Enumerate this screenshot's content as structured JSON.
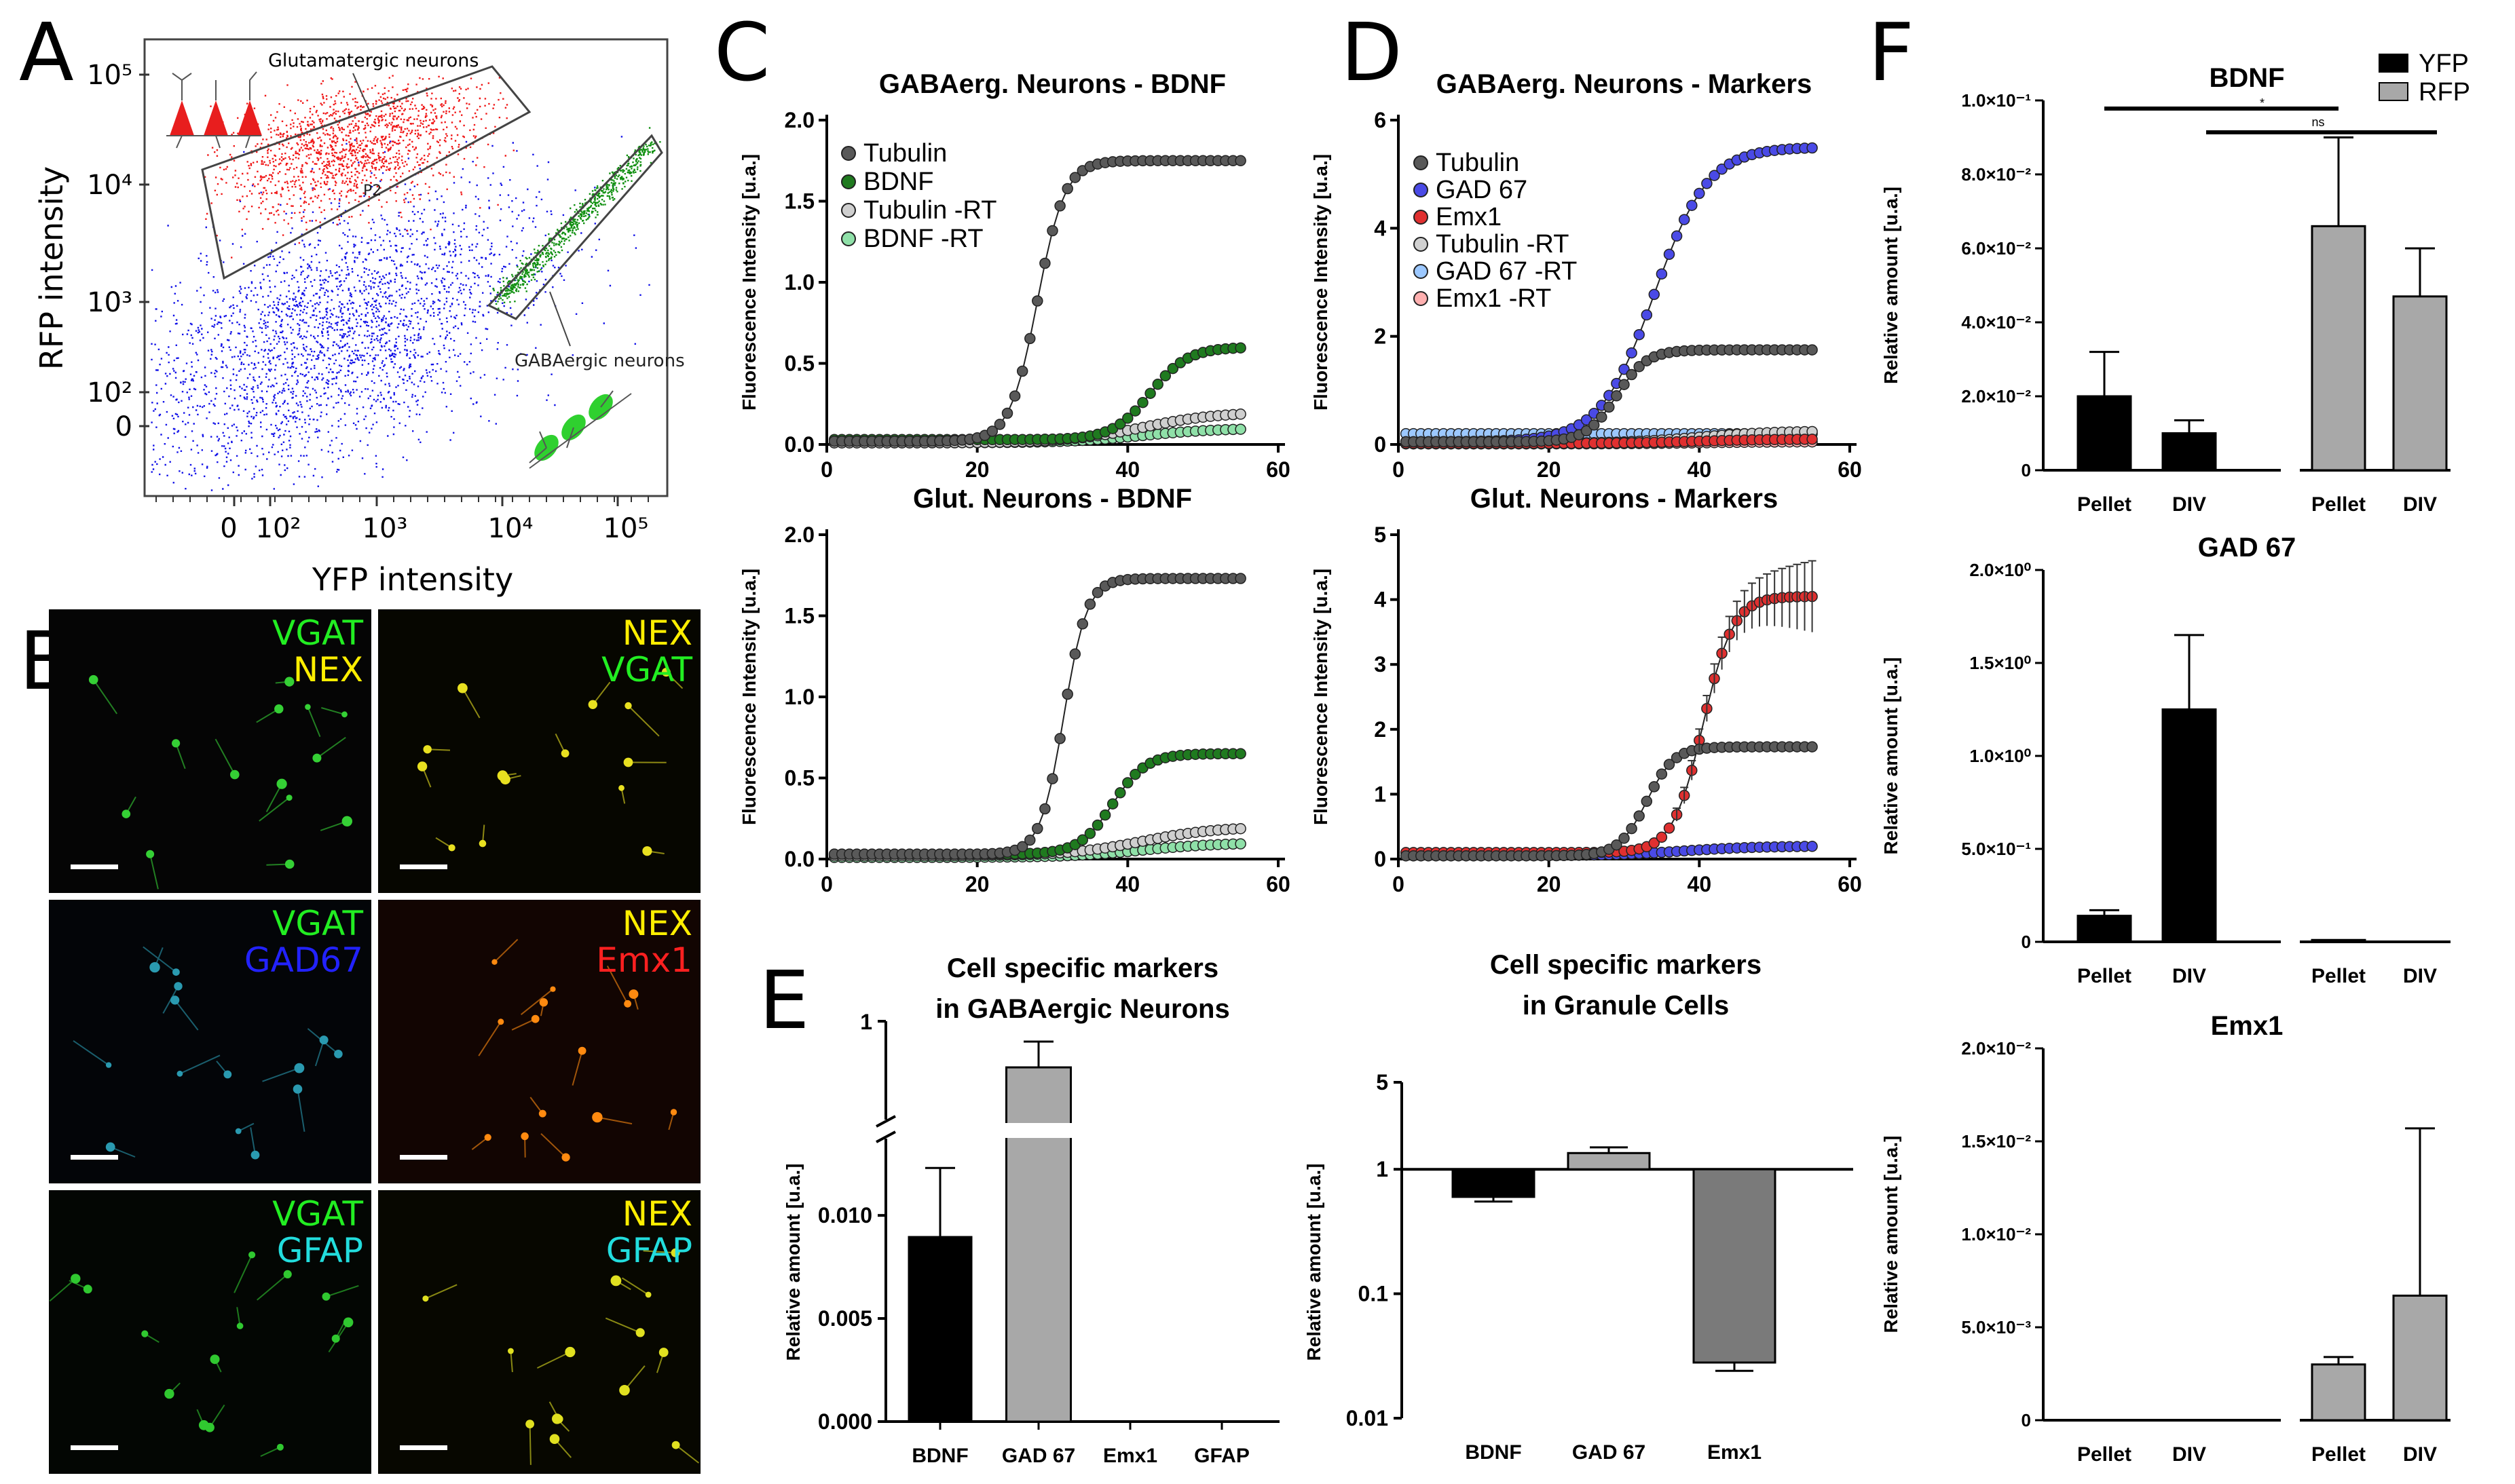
{
  "panel_letters": [
    "A",
    "B",
    "C",
    "D",
    "E",
    "F"
  ],
  "flow": {
    "xlabel": "YFP intensity",
    "ylabel": "RFP intensity",
    "xticks": [
      "0",
      "10²",
      "10³",
      "10⁴",
      "10⁵"
    ],
    "yticks": [
      "0",
      "10²",
      "10³",
      "10⁴",
      "10⁵"
    ],
    "gate1_label": "Glutamatergic neurons",
    "gate1_id": "P2",
    "gate2_label": "GABAergic neurons"
  },
  "micro": {
    "tiles": [
      {
        "l1": "VGAT",
        "c1": "#22ee22",
        "l2": "NEX",
        "c2": "#ffee00",
        "cell": "#35d035",
        "base": "#050505"
      },
      {
        "l1": "NEX",
        "c1": "#ffee00",
        "l2": "VGAT",
        "c2": "#22ee22",
        "cell": "#e8e020",
        "base": "#060600"
      },
      {
        "l1": "VGAT",
        "c1": "#22ee22",
        "l2": "GAD67",
        "c2": "#2222ff",
        "cell": "#2a9ab0",
        "base": "#030508"
      },
      {
        "l1": "NEX",
        "c1": "#ffee00",
        "l2": "Emx1",
        "c2": "#ff2020",
        "cell": "#ff8a10",
        "base": "#120502"
      },
      {
        "l1": "VGAT",
        "c1": "#22ee22",
        "l2": "GFAP",
        "c2": "#22dddd",
        "cell": "#30c830",
        "base": "#030603"
      },
      {
        "l1": "NEX",
        "c1": "#ffee00",
        "l2": "GFAP",
        "c2": "#22dddd",
        "cell": "#e0e020",
        "base": "#070700"
      }
    ]
  },
  "chart_data": [
    {
      "id": "C_top",
      "type": "line",
      "title": "GABAerg. Neurons - BDNF",
      "xlabel": "",
      "ylabel": "Fluorescence Intensity [u.a.]",
      "xlim": [
        0,
        60
      ],
      "ylim": [
        0,
        2.0
      ],
      "xticks": [
        0,
        20,
        40,
        60
      ],
      "yticks": [
        0.0,
        0.5,
        1.0,
        1.5,
        2.0
      ],
      "series": [
        {
          "name": "Tubulin",
          "color": "#595959",
          "shape": "sigmoid",
          "base": 0.02,
          "top": 1.75,
          "mid": 28,
          "k": 0.55
        },
        {
          "name": "BDNF",
          "color": "#1f7a1f",
          "shape": "sigmoid",
          "base": 0.03,
          "top": 0.6,
          "mid": 43,
          "k": 0.4
        },
        {
          "name": "Tubulin -RT",
          "color": "#cfcfcf",
          "shape": "sigmoid",
          "base": 0.01,
          "top": 0.2,
          "mid": 42,
          "k": 0.2
        },
        {
          "name": "BDNF -RT",
          "color": "#8fe0a8",
          "shape": "sigmoid",
          "base": 0.01,
          "top": 0.1,
          "mid": 42,
          "k": 0.2
        }
      ]
    },
    {
      "id": "C_bottom",
      "type": "line",
      "title": "Glut. Neurons - BDNF",
      "xlabel": "",
      "ylabel": "Fluorescence Intensity [u.a.]",
      "xlim": [
        0,
        60
      ],
      "ylim": [
        0,
        2.0
      ],
      "xticks": [
        0,
        20,
        40,
        60
      ],
      "yticks": [
        0.0,
        0.5,
        1.0,
        1.5,
        2.0
      ],
      "series": [
        {
          "name": "Tubulin",
          "color": "#595959",
          "shape": "sigmoid",
          "base": 0.03,
          "top": 1.73,
          "mid": 31.5,
          "k": 0.65
        },
        {
          "name": "BDNF",
          "color": "#1f7a1f",
          "shape": "sigmoid",
          "base": 0.03,
          "top": 0.65,
          "mid": 38,
          "k": 0.45
        },
        {
          "name": "Tubulin -RT",
          "color": "#cfcfcf",
          "shape": "sigmoid",
          "base": 0.02,
          "top": 0.2,
          "mid": 42,
          "k": 0.2
        },
        {
          "name": "BDNF -RT",
          "color": "#8fe0a8",
          "shape": "sigmoid",
          "base": 0.01,
          "top": 0.1,
          "mid": 42,
          "k": 0.2
        }
      ]
    },
    {
      "id": "D_top",
      "type": "line",
      "title": "GABAerg. Neurons - Markers",
      "xlabel": "",
      "ylabel": "Fluorescence Intensity [u.a.]",
      "xlim": [
        0,
        60
      ],
      "ylim": [
        0,
        6
      ],
      "xticks": [
        0,
        20,
        40,
        60
      ],
      "yticks": [
        0,
        2,
        4,
        6
      ],
      "series": [
        {
          "name": "Tubulin",
          "color": "#595959",
          "shape": "sigmoid",
          "base": 0.05,
          "top": 1.75,
          "mid": 29,
          "k": 0.5
        },
        {
          "name": "GAD 67",
          "color": "#4a4ae6",
          "shape": "sigmoid",
          "base": 0.05,
          "top": 5.5,
          "mid": 34,
          "k": 0.28
        },
        {
          "name": "Emx1",
          "color": "#e03030",
          "shape": "sigmoid",
          "base": 0.02,
          "top": 0.1,
          "mid": 40,
          "k": 0.2
        },
        {
          "name": "Tubulin -RT",
          "color": "#d0d0d0",
          "shape": "sigmoid",
          "base": 0.02,
          "top": 0.25,
          "mid": 40,
          "k": 0.2
        },
        {
          "name": "GAD 67 -RT",
          "color": "#9cc8ff",
          "shape": "sigmoid",
          "base": 0.2,
          "top": 0.2,
          "mid": 40,
          "k": 0.2
        },
        {
          "name": "Emx1 -RT",
          "color": "#ffb0b0",
          "shape": "sigmoid",
          "base": 0.01,
          "top": 0.05,
          "mid": 40,
          "k": 0.2
        }
      ]
    },
    {
      "id": "D_bottom",
      "type": "line",
      "title": "Glut. Neurons - Markers",
      "xlabel": "",
      "ylabel": "Fluorescence Intensity [u.a.]",
      "xlim": [
        0,
        60
      ],
      "ylim": [
        0,
        5
      ],
      "xticks": [
        0,
        20,
        40,
        60
      ],
      "yticks": [
        0,
        1,
        2,
        3,
        4,
        5
      ],
      "series": [
        {
          "name": "Tubulin",
          "color": "#595959",
          "shape": "sigmoid",
          "base": 0.05,
          "top": 1.73,
          "mid": 33,
          "k": 0.55
        },
        {
          "name": "Emx1",
          "color": "#e03030",
          "shape": "sigmoid",
          "base": 0.1,
          "top": 4.05,
          "mid": 40.5,
          "k": 0.5
        },
        {
          "name": "GAD 67",
          "color": "#4a4ae6",
          "shape": "sigmoid",
          "base": 0.05,
          "top": 0.2,
          "mid": 38,
          "k": 0.2
        }
      ]
    },
    {
      "id": "E_left",
      "type": "bar",
      "title": "Cell specific markers in GABAergic Neurons",
      "title_lines": [
        "Cell specific markers",
        "in GABAergic Neurons"
      ],
      "ylabel": "Relative amount [u.a.]",
      "categories": [
        "BDNF",
        "GAD 67",
        "Emx1",
        "GFAP"
      ],
      "values": [
        0.009,
        0.85,
        0,
        0
      ],
      "errors": [
        0.0033,
        0.1,
        0,
        0
      ],
      "colors": [
        "#000000",
        "#a8a8a8",
        "#888888",
        "#888888"
      ],
      "ylim_lower": [
        0,
        0.013
      ],
      "yticks": [
        "0.000",
        "0.005",
        "0.010"
      ],
      "upper_tick": "1",
      "axis_break": true
    },
    {
      "id": "E_right",
      "type": "bar",
      "title": "Cell specific markers in Granule Cells",
      "title_lines": [
        "Cell specific markers",
        "in Granule Cells"
      ],
      "ylabel": "Relative amount [u.a.]",
      "categories": [
        "BDNF",
        "GAD 67",
        "Emx1"
      ],
      "values": [
        0.6,
        1.35,
        0.028
      ],
      "errors": [
        0.05,
        0.15,
        0.004
      ],
      "colors": [
        "#000000",
        "#a8a8a8",
        "#7a7a7a"
      ],
      "scale": "log",
      "ylim": [
        0.01,
        5
      ],
      "baseline": 1,
      "yticks": [
        "0.01",
        "0.1",
        "1",
        "5"
      ]
    },
    {
      "id": "F_top",
      "type": "bar",
      "title": "BDNF",
      "ylabel": "Relative amount [u.a.]",
      "categories": [
        "Pellet",
        "DIV",
        "Pellet",
        "DIV"
      ],
      "series": [
        {
          "name": "YFP",
          "color": "#000000"
        },
        {
          "name": "RFP",
          "color": "#a8a8a8"
        }
      ],
      "values": [
        0.02,
        0.01,
        0.066,
        0.047
      ],
      "errors": [
        0.012,
        0.0035,
        0.024,
        0.013
      ],
      "bar_series": [
        0,
        0,
        1,
        1
      ],
      "ylim": [
        0,
        0.1
      ],
      "yticks": [
        "0",
        "2.0×10⁻²",
        "4.0×10⁻²",
        "6.0×10⁻²",
        "8.0×10⁻²",
        "1.0×10⁻¹"
      ],
      "sig": [
        "*",
        "ns"
      ]
    },
    {
      "id": "F_mid",
      "type": "bar",
      "title": "GAD 67",
      "ylabel": "Relative amount [u.a.]",
      "categories": [
        "Pellet",
        "DIV",
        "Pellet",
        "DIV"
      ],
      "values": [
        0.14,
        1.25,
        0.01,
        0.0
      ],
      "errors": [
        0.03,
        0.4,
        0,
        0
      ],
      "bar_series": [
        0,
        0,
        1,
        1
      ],
      "ylim": [
        0,
        2.0
      ],
      "yticks": [
        "0",
        "5.0×10⁻¹",
        "1.0×10⁰",
        "1.5×10⁰",
        "2.0×10⁰"
      ]
    },
    {
      "id": "F_bottom",
      "type": "bar",
      "title": "Emx1",
      "ylabel": "Relative amount [u.a.]",
      "categories": [
        "Pellet",
        "DIV",
        "Pellet",
        "DIV"
      ],
      "values": [
        0.0,
        0.0,
        0.003,
        0.0067
      ],
      "errors": [
        0,
        0,
        0.0004,
        0.009
      ],
      "bar_series": [
        0,
        0,
        1,
        1
      ],
      "ylim": [
        0,
        0.02
      ],
      "yticks": [
        "0",
        "5.0×10⁻³",
        "1.0×10⁻²",
        "1.5×10⁻²",
        "2.0×10⁻²"
      ]
    }
  ]
}
